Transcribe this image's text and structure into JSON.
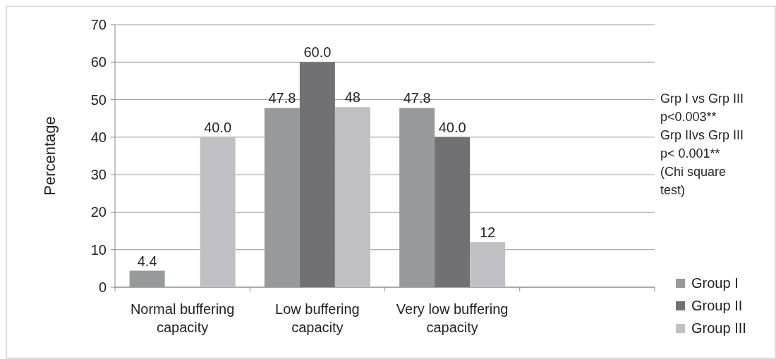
{
  "chart_data": {
    "type": "bar",
    "ylabel": "Percentage",
    "categories": [
      "Normal buffering capacity",
      "Low buffering capacity",
      "Very low buffering capacity",
      null
    ],
    "series": [
      {
        "name": "Group I",
        "color": "#98999b",
        "values": [
          4.4,
          47.8,
          47.8,
          null
        ],
        "value_labels": [
          "4.4",
          "47.8",
          "47.8",
          null
        ]
      },
      {
        "name": "Group II",
        "color": "#717175",
        "values": [
          null,
          60.0,
          40.0,
          null
        ],
        "value_labels": [
          null,
          "60.0",
          "40.0",
          null
        ]
      },
      {
        "name": "Group III",
        "color": "#c0c0c4",
        "values": [
          40.0,
          48,
          12,
          null
        ],
        "value_labels": [
          "40.0",
          "48",
          "12",
          null
        ]
      }
    ],
    "ylim": [
      0,
      70
    ],
    "yticks": [
      0,
      10,
      20,
      30,
      40,
      50,
      60,
      70
    ],
    "grid": "y",
    "legend": "right",
    "annotations": [
      "Grp I vs Grp III p<0.003**",
      "Grp IIvs Grp III p< 0.001**",
      "(Chi square test)"
    ]
  }
}
